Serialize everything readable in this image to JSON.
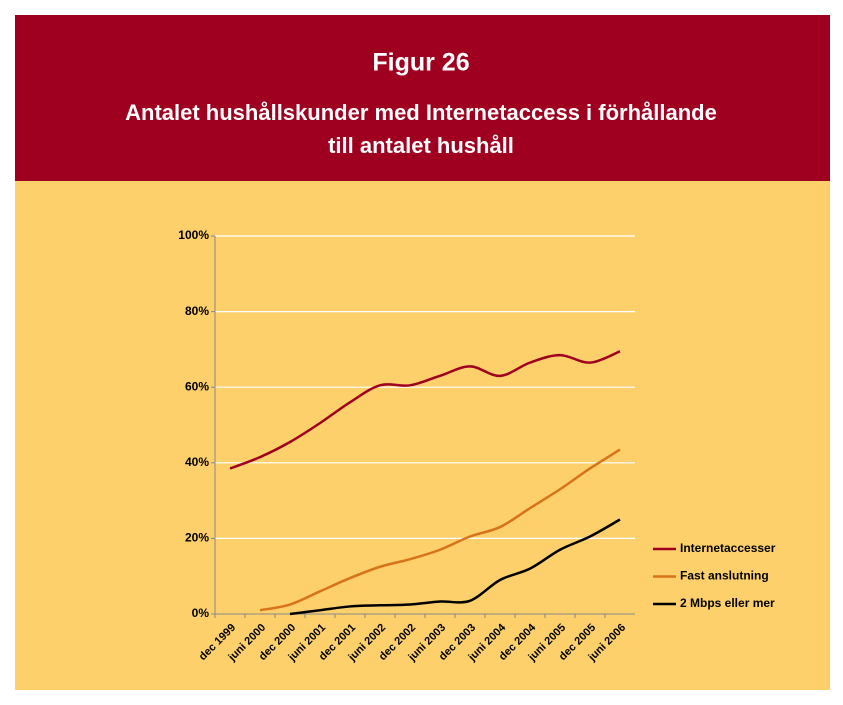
{
  "chart_data": {
    "type": "line",
    "title": "Figur 26",
    "subtitle": [
      "Antalet hushållskunder med Internetaccess i förhållande",
      "till antalet hushåll"
    ],
    "categories": [
      "dec 1999",
      "juni 2000",
      "dec 2000",
      "juni 2001",
      "dec 2001",
      "juni 2002",
      "dec 2002",
      "juni 2003",
      "dec 2003",
      "juni 2004",
      "dec 2004",
      "juni 2005",
      "dec 2005",
      "juni 2006"
    ],
    "series": [
      {
        "name": "Internetaccesser",
        "color": "#a0001f",
        "values": [
          38.5,
          41.5,
          45.5,
          50.5,
          56,
          60.5,
          60.5,
          63,
          65.5,
          63,
          66.5,
          68.5,
          66.5,
          69.5
        ]
      },
      {
        "name": "Fast anslutning",
        "color": "#d9731a",
        "values": [
          null,
          1,
          2.5,
          6,
          9.5,
          12.5,
          14.5,
          17,
          20.5,
          23,
          28,
          33,
          38.5,
          43.5
        ]
      },
      {
        "name": "2 Mbps eller mer",
        "color": "#000000",
        "values": [
          null,
          null,
          0,
          1,
          2,
          2.3,
          2.5,
          3.3,
          3.5,
          9,
          12,
          17,
          20.5,
          25
        ]
      }
    ],
    "ylim": [
      0,
      100
    ],
    "yticks": [
      {
        "value": 0,
        "label": "0%"
      },
      {
        "value": 20,
        "label": "20%"
      },
      {
        "value": 40,
        "label": "40%"
      },
      {
        "value": 60,
        "label": "60%"
      },
      {
        "value": 80,
        "label": "80%"
      },
      {
        "value": 100,
        "label": "100%"
      }
    ],
    "grid": true,
    "legend": "right"
  }
}
